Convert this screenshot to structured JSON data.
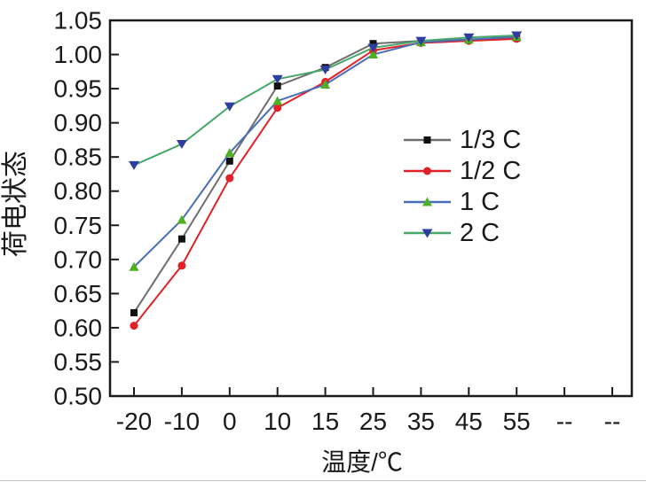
{
  "figure": {
    "background": "#ffffff",
    "axis_color": "#1a1a1a",
    "text_color": "#1a1a1a",
    "bottom_edge_color": "#a8a8a8"
  },
  "chart_data": {
    "type": "line",
    "title": "",
    "xlabel": "温度/℃",
    "ylabel": "荷电状态",
    "categories": [
      "-20",
      "-10",
      "0",
      "10",
      "15",
      "25",
      "35",
      "45",
      "55",
      "--",
      "--"
    ],
    "ytick_labels": [
      "0.50",
      "0.55",
      "0.60",
      "0.65",
      "0.70",
      "0.75",
      "0.80",
      "0.85",
      "0.90",
      "0.95",
      "1.00",
      "1.05"
    ],
    "ylim": [
      0.5,
      1.05
    ],
    "grid": false,
    "legend_position": "center-right-inside",
    "series": [
      {
        "name": "1/3 C",
        "marker": "square",
        "line_color": "#6e6e6e",
        "marker_color": "#111111",
        "values": [
          0.622,
          0.73,
          0.844,
          0.954,
          0.981,
          1.016,
          1.02,
          1.022,
          1.024
        ]
      },
      {
        "name": "1/2 C",
        "marker": "circle",
        "line_color": "#e02128",
        "marker_color": "#e02128",
        "values": [
          0.603,
          0.691,
          0.819,
          0.922,
          0.96,
          1.006,
          1.017,
          1.02,
          1.023
        ]
      },
      {
        "name": "1 C",
        "marker": "triangle-up",
        "line_color": "#4a6db8",
        "marker_color": "#4cb122",
        "values": [
          0.689,
          0.758,
          0.856,
          0.932,
          0.956,
          1.0,
          1.018,
          1.022,
          1.026
        ]
      },
      {
        "name": "2 C",
        "marker": "triangle-down",
        "line_color": "#48a768",
        "marker_color": "#2e3d9e",
        "values": [
          0.838,
          0.869,
          0.924,
          0.964,
          0.978,
          1.01,
          1.02,
          1.025,
          1.028
        ]
      }
    ]
  }
}
